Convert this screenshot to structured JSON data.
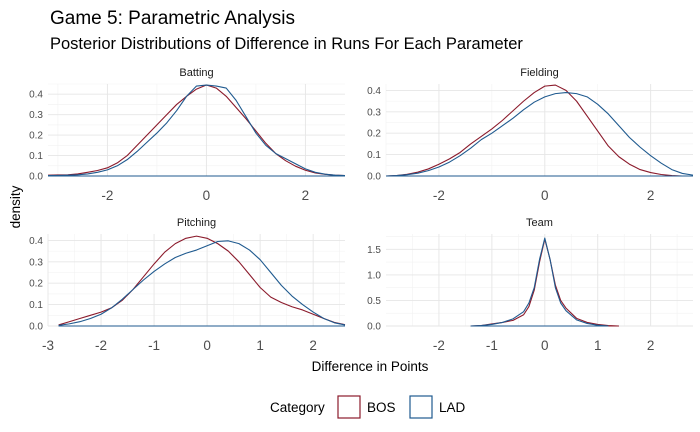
{
  "title": "Game 5: Parametric Analysis",
  "subtitle": "Posterior Distributions of Difference in Runs For Each Parameter",
  "xlabel": "Difference in Points",
  "ylabel": "density",
  "legend": {
    "title": "Category",
    "items": [
      {
        "label": "BOS",
        "color": "#8b1a2b"
      },
      {
        "label": "LAD",
        "color": "#1f5a8f"
      }
    ]
  },
  "chart_data": [
    {
      "type": "area",
      "title": "Batting",
      "xlim": [
        -3.2,
        2.8
      ],
      "ylim": [
        0,
        0.45
      ],
      "xticks": [
        -2,
        0,
        2
      ],
      "yticks": [
        0.0,
        0.1,
        0.2,
        0.3,
        0.4
      ],
      "series": [
        {
          "name": "BOS",
          "x": [
            -3.2,
            -3.0,
            -2.8,
            -2.6,
            -2.4,
            -2.2,
            -2.0,
            -1.8,
            -1.6,
            -1.4,
            -1.2,
            -1.0,
            -0.8,
            -0.6,
            -0.4,
            -0.2,
            0.0,
            0.2,
            0.4,
            0.6,
            0.8,
            1.0,
            1.2,
            1.4,
            1.6,
            1.8,
            2.0,
            2.2,
            2.4,
            2.6,
            2.8
          ],
          "y": [
            0.004,
            0.005,
            0.006,
            0.01,
            0.018,
            0.027,
            0.04,
            0.064,
            0.1,
            0.15,
            0.2,
            0.25,
            0.3,
            0.35,
            0.39,
            0.425,
            0.445,
            0.43,
            0.39,
            0.335,
            0.28,
            0.22,
            0.16,
            0.11,
            0.075,
            0.048,
            0.028,
            0.015,
            0.008,
            0.004,
            0.002
          ]
        },
        {
          "name": "LAD",
          "x": [
            -3.2,
            -3.0,
            -2.8,
            -2.6,
            -2.4,
            -2.2,
            -2.0,
            -1.8,
            -1.6,
            -1.4,
            -1.2,
            -1.0,
            -0.8,
            -0.6,
            -0.4,
            -0.2,
            0.0,
            0.2,
            0.4,
            0.6,
            0.8,
            1.0,
            1.2,
            1.4,
            1.6,
            1.8,
            2.0,
            2.2,
            2.4,
            2.6,
            2.8
          ],
          "y": [
            0.002,
            0.003,
            0.004,
            0.006,
            0.01,
            0.018,
            0.03,
            0.05,
            0.08,
            0.12,
            0.165,
            0.21,
            0.26,
            0.32,
            0.39,
            0.44,
            0.445,
            0.44,
            0.43,
            0.37,
            0.29,
            0.21,
            0.15,
            0.11,
            0.085,
            0.06,
            0.035,
            0.018,
            0.009,
            0.004,
            0.002
          ]
        }
      ]
    },
    {
      "type": "area",
      "title": "Fielding",
      "xlim": [
        -3.0,
        2.8
      ],
      "ylim": [
        0,
        0.43
      ],
      "xticks": [
        -2,
        0,
        2
      ],
      "yticks": [
        0.0,
        0.1,
        0.2,
        0.3,
        0.4
      ],
      "series": [
        {
          "name": "BOS",
          "x": [
            -3.0,
            -2.8,
            -2.6,
            -2.4,
            -2.2,
            -2.0,
            -1.8,
            -1.6,
            -1.4,
            -1.2,
            -1.0,
            -0.8,
            -0.6,
            -0.4,
            -0.2,
            0.0,
            0.2,
            0.4,
            0.6,
            0.8,
            1.0,
            1.2,
            1.4,
            1.6,
            1.8,
            2.0,
            2.2,
            2.4,
            2.6
          ],
          "y": [
            0.0,
            0.002,
            0.008,
            0.018,
            0.033,
            0.055,
            0.08,
            0.11,
            0.15,
            0.185,
            0.22,
            0.26,
            0.305,
            0.35,
            0.39,
            0.42,
            0.425,
            0.4,
            0.35,
            0.28,
            0.21,
            0.14,
            0.09,
            0.055,
            0.03,
            0.016,
            0.007,
            0.002,
            0.0
          ]
        },
        {
          "name": "LAD",
          "x": [
            -3.0,
            -2.8,
            -2.6,
            -2.4,
            -2.2,
            -2.0,
            -1.8,
            -1.6,
            -1.4,
            -1.2,
            -1.0,
            -0.8,
            -0.6,
            -0.4,
            -0.2,
            0.0,
            0.2,
            0.4,
            0.6,
            0.8,
            1.0,
            1.2,
            1.4,
            1.6,
            1.8,
            2.0,
            2.2,
            2.4,
            2.6,
            2.8
          ],
          "y": [
            0.0,
            0.002,
            0.006,
            0.013,
            0.025,
            0.042,
            0.065,
            0.095,
            0.13,
            0.17,
            0.2,
            0.235,
            0.27,
            0.31,
            0.345,
            0.37,
            0.385,
            0.39,
            0.385,
            0.37,
            0.335,
            0.29,
            0.235,
            0.18,
            0.135,
            0.095,
            0.06,
            0.03,
            0.012,
            0.004
          ]
        }
      ]
    },
    {
      "type": "area",
      "title": "Pitching",
      "xlim": [
        -3.0,
        2.6
      ],
      "ylim": [
        0,
        0.43
      ],
      "xticks": [
        -3,
        -2,
        -1,
        0,
        1,
        2
      ],
      "yticks": [
        0.0,
        0.1,
        0.2,
        0.3,
        0.4
      ],
      "series": [
        {
          "name": "BOS",
          "x": [
            -2.8,
            -2.6,
            -2.4,
            -2.2,
            -2.0,
            -1.8,
            -1.6,
            -1.4,
            -1.2,
            -1.0,
            -0.8,
            -0.6,
            -0.4,
            -0.2,
            0.0,
            0.2,
            0.4,
            0.6,
            0.8,
            1.0,
            1.2,
            1.4,
            1.6,
            1.8,
            2.0,
            2.2,
            2.4,
            2.6
          ],
          "y": [
            0.005,
            0.02,
            0.035,
            0.05,
            0.065,
            0.085,
            0.12,
            0.17,
            0.23,
            0.29,
            0.345,
            0.385,
            0.41,
            0.42,
            0.41,
            0.385,
            0.35,
            0.3,
            0.24,
            0.18,
            0.135,
            0.11,
            0.09,
            0.075,
            0.055,
            0.035,
            0.017,
            0.006
          ]
        },
        {
          "name": "LAD",
          "x": [
            -2.8,
            -2.6,
            -2.4,
            -2.2,
            -2.0,
            -1.8,
            -1.6,
            -1.4,
            -1.2,
            -1.0,
            -0.8,
            -0.6,
            -0.4,
            -0.2,
            0.0,
            0.2,
            0.4,
            0.6,
            0.8,
            1.0,
            1.2,
            1.4,
            1.6,
            1.8,
            2.0,
            2.2,
            2.4,
            2.6
          ],
          "y": [
            0.003,
            0.01,
            0.02,
            0.035,
            0.055,
            0.085,
            0.125,
            0.17,
            0.215,
            0.255,
            0.29,
            0.32,
            0.34,
            0.355,
            0.375,
            0.395,
            0.398,
            0.385,
            0.355,
            0.31,
            0.25,
            0.19,
            0.14,
            0.1,
            0.065,
            0.035,
            0.015,
            0.005
          ]
        }
      ]
    },
    {
      "type": "area",
      "title": "Team",
      "xlim": [
        -3.0,
        2.8
      ],
      "ylim": [
        0,
        1.8
      ],
      "xticks": [
        -2,
        -1,
        0,
        1,
        2
      ],
      "yticks": [
        0.0,
        0.5,
        1.0,
        1.5
      ],
      "series": [
        {
          "name": "BOS",
          "x": [
            -1.4,
            -1.2,
            -1.0,
            -0.8,
            -0.6,
            -0.4,
            -0.3,
            -0.2,
            -0.1,
            0.0,
            0.1,
            0.2,
            0.3,
            0.4,
            0.6,
            0.8,
            1.0,
            1.2,
            1.4
          ],
          "y": [
            0.0,
            0.01,
            0.04,
            0.07,
            0.11,
            0.22,
            0.38,
            0.7,
            1.25,
            1.7,
            1.3,
            0.8,
            0.5,
            0.35,
            0.15,
            0.07,
            0.03,
            0.01,
            0.0
          ]
        },
        {
          "name": "LAD",
          "x": [
            -1.4,
            -1.2,
            -1.0,
            -0.8,
            -0.6,
            -0.4,
            -0.3,
            -0.2,
            -0.1,
            0.0,
            0.1,
            0.2,
            0.3,
            0.4,
            0.6,
            0.8,
            1.0,
            1.2
          ],
          "y": [
            0.0,
            0.01,
            0.03,
            0.07,
            0.14,
            0.28,
            0.45,
            0.75,
            1.3,
            1.72,
            1.3,
            0.75,
            0.45,
            0.3,
            0.12,
            0.05,
            0.015,
            0.0
          ]
        }
      ]
    }
  ]
}
